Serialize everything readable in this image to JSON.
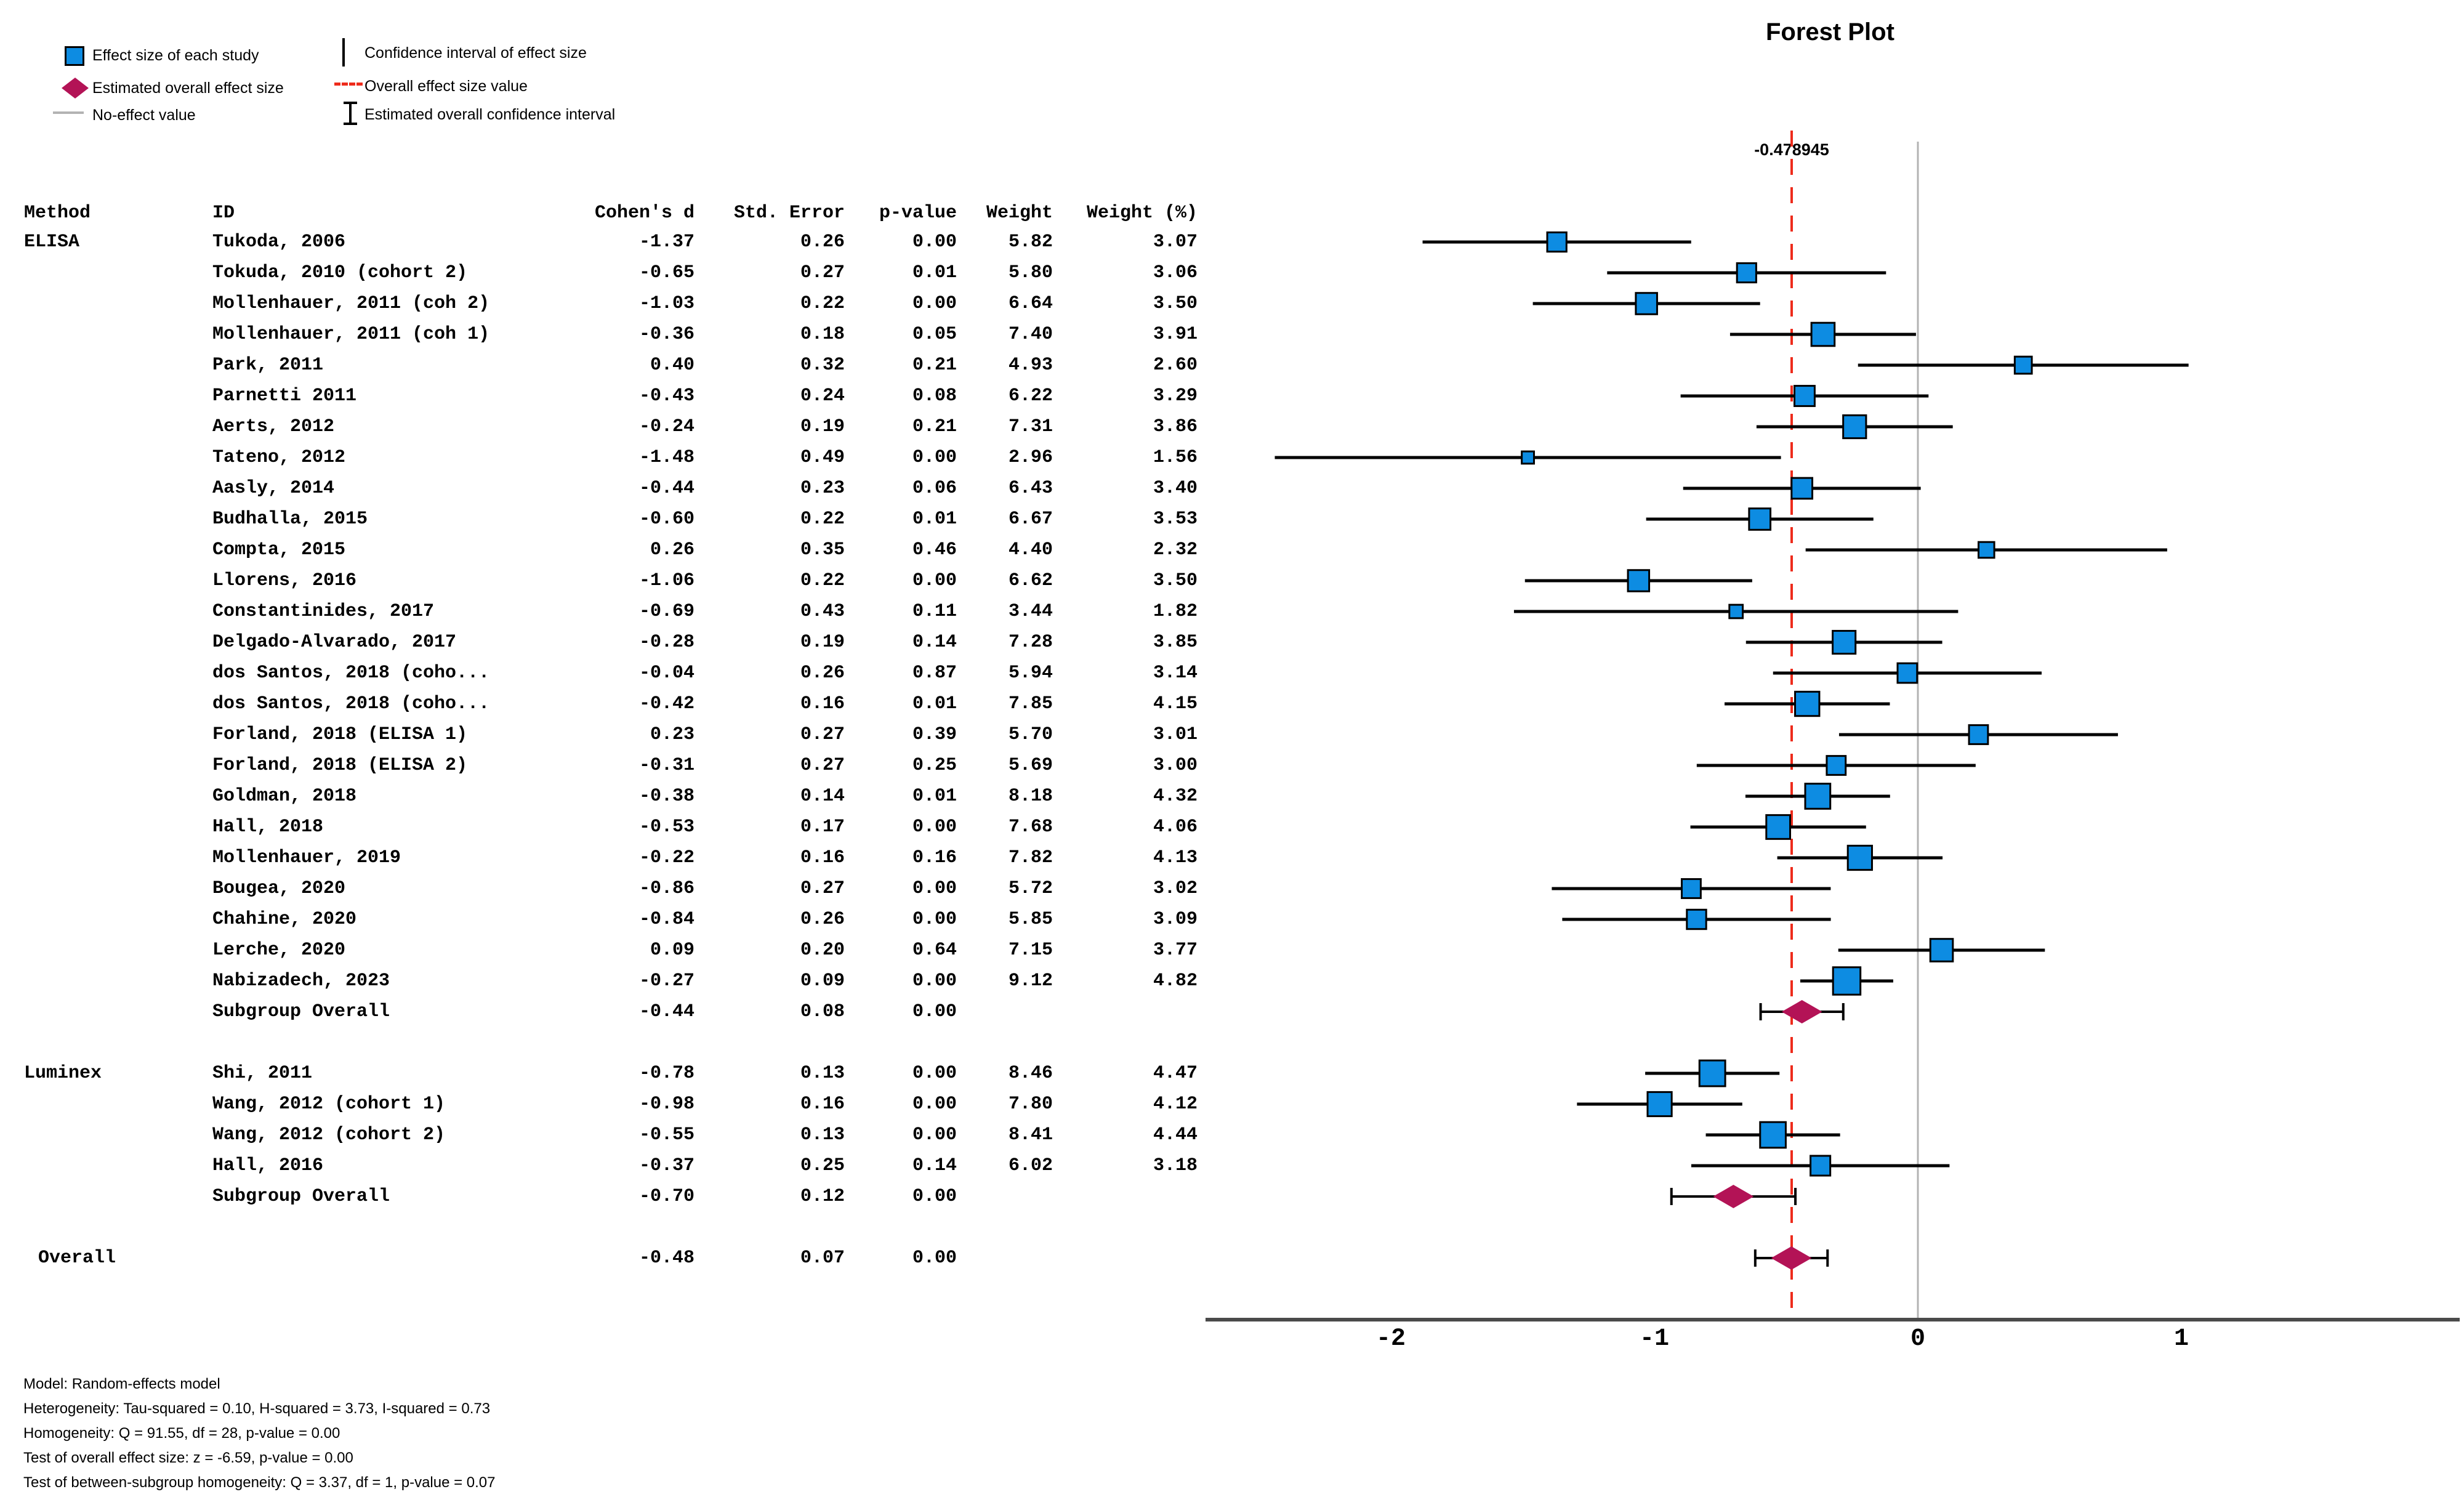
{
  "chart_data": {
    "type": "forest",
    "title": "Forest Plot",
    "overall_effect_label": "-0.478945",
    "overall_effect_value": -0.478945,
    "no_effect_value": 0,
    "ci_multiplier": 1.96,
    "x_ticks": [
      "-2",
      "-1",
      "0",
      "1"
    ],
    "x_tick_values": [
      -2,
      -1,
      0,
      1
    ],
    "axis_range": [
      -2.7,
      2.05
    ],
    "columns": [
      "Method",
      "ID",
      "Cohen's d",
      "Std. Error",
      "p-value",
      "Weight",
      "Weight (%)"
    ],
    "groups": [
      {
        "method": "ELISA",
        "studies": [
          {
            "id": "Tukoda, 2006",
            "d": -1.37,
            "se": 0.26,
            "p": 0.0,
            "weight": 5.82,
            "weight_pct": 3.07
          },
          {
            "id": "Tokuda, 2010 (cohort 2)",
            "d": -0.65,
            "se": 0.27,
            "p": 0.01,
            "weight": 5.8,
            "weight_pct": 3.06
          },
          {
            "id": "Mollenhauer, 2011 (coh 2)",
            "d": -1.03,
            "se": 0.22,
            "p": 0.0,
            "weight": 6.64,
            "weight_pct": 3.5
          },
          {
            "id": "Mollenhauer, 2011 (coh 1)",
            "d": -0.36,
            "se": 0.18,
            "p": 0.05,
            "weight": 7.4,
            "weight_pct": 3.91
          },
          {
            "id": "Park, 2011",
            "d": 0.4,
            "se": 0.32,
            "p": 0.21,
            "weight": 4.93,
            "weight_pct": 2.6
          },
          {
            "id": "Parnetti 2011",
            "d": -0.43,
            "se": 0.24,
            "p": 0.08,
            "weight": 6.22,
            "weight_pct": 3.29
          },
          {
            "id": "Aerts, 2012",
            "d": -0.24,
            "se": 0.19,
            "p": 0.21,
            "weight": 7.31,
            "weight_pct": 3.86
          },
          {
            "id": "Tateno, 2012",
            "d": -1.48,
            "se": 0.49,
            "p": 0.0,
            "weight": 2.96,
            "weight_pct": 1.56
          },
          {
            "id": "Aasly, 2014",
            "d": -0.44,
            "se": 0.23,
            "p": 0.06,
            "weight": 6.43,
            "weight_pct": 3.4
          },
          {
            "id": "Budhalla, 2015",
            "d": -0.6,
            "se": 0.22,
            "p": 0.01,
            "weight": 6.67,
            "weight_pct": 3.53
          },
          {
            "id": "Compta, 2015",
            "d": 0.26,
            "se": 0.35,
            "p": 0.46,
            "weight": 4.4,
            "weight_pct": 2.32
          },
          {
            "id": "Llorens, 2016",
            "d": -1.06,
            "se": 0.22,
            "p": 0.0,
            "weight": 6.62,
            "weight_pct": 3.5
          },
          {
            "id": "Constantinides, 2017",
            "d": -0.69,
            "se": 0.43,
            "p": 0.11,
            "weight": 3.44,
            "weight_pct": 1.82
          },
          {
            "id": "Delgado-Alvarado, 2017",
            "d": -0.28,
            "se": 0.19,
            "p": 0.14,
            "weight": 7.28,
            "weight_pct": 3.85
          },
          {
            "id": "dos Santos, 2018 (coho...",
            "d": -0.04,
            "se": 0.26,
            "p": 0.87,
            "weight": 5.94,
            "weight_pct": 3.14
          },
          {
            "id": "dos Santos, 2018 (coho...",
            "d": -0.42,
            "se": 0.16,
            "p": 0.01,
            "weight": 7.85,
            "weight_pct": 4.15
          },
          {
            "id": "Forland, 2018 (ELISA 1)",
            "d": 0.23,
            "se": 0.27,
            "p": 0.39,
            "weight": 5.7,
            "weight_pct": 3.01
          },
          {
            "id": "Forland, 2018 (ELISA 2)",
            "d": -0.31,
            "se": 0.27,
            "p": 0.25,
            "weight": 5.69,
            "weight_pct": 3.0
          },
          {
            "id": "Goldman, 2018",
            "d": -0.38,
            "se": 0.14,
            "p": 0.01,
            "weight": 8.18,
            "weight_pct": 4.32
          },
          {
            "id": "Hall, 2018",
            "d": -0.53,
            "se": 0.17,
            "p": 0.0,
            "weight": 7.68,
            "weight_pct": 4.06
          },
          {
            "id": "Mollenhauer, 2019",
            "d": -0.22,
            "se": 0.16,
            "p": 0.16,
            "weight": 7.82,
            "weight_pct": 4.13
          },
          {
            "id": "Bougea, 2020",
            "d": -0.86,
            "se": 0.27,
            "p": 0.0,
            "weight": 5.72,
            "weight_pct": 3.02
          },
          {
            "id": "Chahine, 2020",
            "d": -0.84,
            "se": 0.26,
            "p": 0.0,
            "weight": 5.85,
            "weight_pct": 3.09
          },
          {
            "id": "Lerche, 2020",
            "d": 0.09,
            "se": 0.2,
            "p": 0.64,
            "weight": 7.15,
            "weight_pct": 3.77
          },
          {
            "id": "Nabizadech, 2023",
            "d": -0.27,
            "se": 0.09,
            "p": 0.0,
            "weight": 9.12,
            "weight_pct": 4.82
          }
        ],
        "subgroup": {
          "id": "Subgroup Overall",
          "d": -0.44,
          "se": 0.08,
          "p": 0.0
        }
      },
      {
        "method": "Luminex",
        "studies": [
          {
            "id": "Shi, 2011",
            "d": -0.78,
            "se": 0.13,
            "p": 0.0,
            "weight": 8.46,
            "weight_pct": 4.47
          },
          {
            "id": "Wang, 2012 (cohort 1)",
            "d": -0.98,
            "se": 0.16,
            "p": 0.0,
            "weight": 7.8,
            "weight_pct": 4.12
          },
          {
            "id": "Wang, 2012 (cohort 2)",
            "d": -0.55,
            "se": 0.13,
            "p": 0.0,
            "weight": 8.41,
            "weight_pct": 4.44
          },
          {
            "id": "Hall, 2016",
            "d": -0.37,
            "se": 0.25,
            "p": 0.14,
            "weight": 6.02,
            "weight_pct": 3.18
          }
        ],
        "subgroup": {
          "id": "Subgroup Overall",
          "d": -0.7,
          "se": 0.12,
          "p": 0.0
        }
      }
    ],
    "overall": {
      "id": "Overall",
      "d": -0.48,
      "se": 0.07,
      "p": 0.0
    }
  },
  "legend": {
    "items": [
      {
        "swatch": "study-square",
        "label": "Effect size of each study"
      },
      {
        "swatch": "overall-diamond",
        "label": "Estimated overall effect size"
      },
      {
        "swatch": "no-effect-line",
        "label": "No-effect value"
      },
      {
        "swatch": "ci-line",
        "label": "Confidence interval of effect size"
      },
      {
        "swatch": "overall-dash-line",
        "label": "Overall effect size value"
      },
      {
        "swatch": "overall-ci-ibeam",
        "label": "Estimated overall confidence interval"
      }
    ]
  },
  "footer": {
    "lines": [
      "Model: Random-effects model",
      "Heterogeneity: Tau-squared = 0.10, H-squared = 3.73, I-squared = 0.73",
      "Homogeneity: Q = 91.55, df = 28, p-value = 0.00",
      "Test of overall effect size: z = -6.59, p-value = 0.00",
      "Test of between-subgroup homogeneity: Q = 3.37, df = 1, p-value = 0.07"
    ]
  },
  "colors": {
    "study_square": "#0d8ce2",
    "overall_diamond": "#b31356",
    "overall_effect_line": "#ee2b1b",
    "no_effect_line": "#b3b3b3",
    "ci_line": "#000000",
    "axis_line": "#4a4a4a",
    "text": "#000000"
  }
}
